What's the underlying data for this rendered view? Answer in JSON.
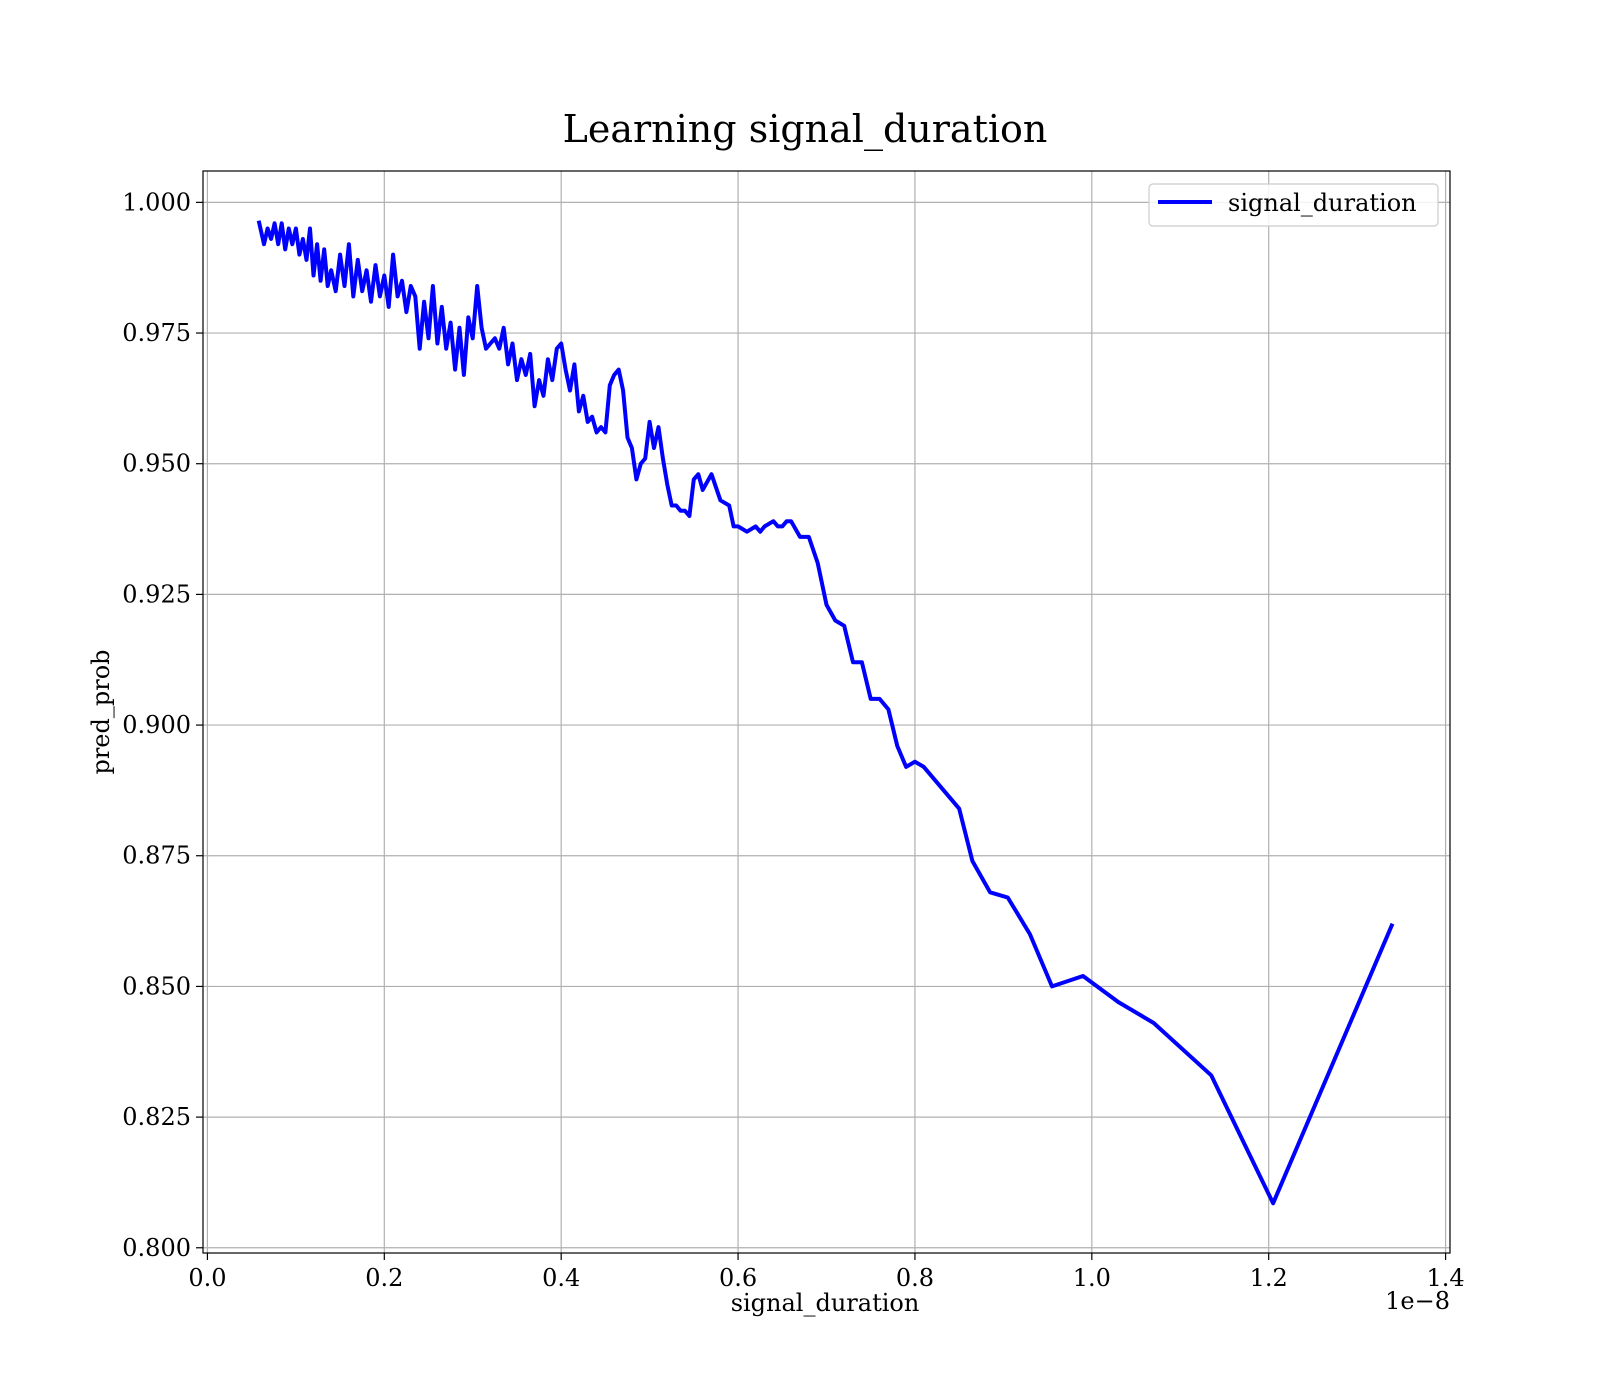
{
  "chart_data": {
    "type": "line",
    "title": "Learning signal_duration",
    "xlabel": "signal_duration",
    "ylabel": "pred_prob",
    "x_offset_label": "1e−8",
    "xlim": [
      -5e-11,
      1.405e-08
    ],
    "ylim": [
      0.799,
      1.006
    ],
    "x_ticks": [
      0.0,
      2e-09,
      4e-09,
      6e-09,
      8e-09,
      1e-08,
      1.2e-08,
      1.4e-08
    ],
    "x_tick_labels": [
      "0.0",
      "0.2",
      "0.4",
      "0.6",
      "0.8",
      "1.0",
      "1.2",
      "1.4"
    ],
    "y_ticks": [
      0.8,
      0.825,
      0.85,
      0.875,
      0.9,
      0.925,
      0.95,
      0.975,
      1.0
    ],
    "y_tick_labels": [
      "0.800",
      "0.825",
      "0.850",
      "0.875",
      "0.900",
      "0.925",
      "0.950",
      "0.975",
      "1.000"
    ],
    "grid": true,
    "legend_position": "top-right",
    "colors": {
      "series": "#0000ff"
    },
    "series": [
      {
        "name": "signal_duration",
        "x": [
          5.8e-10,
          6.4e-10,
          6.8e-10,
          7.2e-10,
          7.6e-10,
          8e-10,
          8.4e-10,
          8.8e-10,
          9.2e-10,
          9.6e-10,
          1e-09,
          1.04e-09,
          1.08e-09,
          1.12e-09,
          1.16e-09,
          1.2e-09,
          1.24e-09,
          1.28e-09,
          1.32e-09,
          1.36e-09,
          1.4e-09,
          1.45e-09,
          1.5e-09,
          1.55e-09,
          1.6e-09,
          1.65e-09,
          1.7e-09,
          1.75e-09,
          1.8e-09,
          1.85e-09,
          1.9e-09,
          1.95e-09,
          2e-09,
          2.05e-09,
          2.1e-09,
          2.15e-09,
          2.2e-09,
          2.25e-09,
          2.3e-09,
          2.35e-09,
          2.4e-09,
          2.45e-09,
          2.5e-09,
          2.55e-09,
          2.6e-09,
          2.65e-09,
          2.7e-09,
          2.75e-09,
          2.8e-09,
          2.85e-09,
          2.9e-09,
          2.95e-09,
          3e-09,
          3.05e-09,
          3.1e-09,
          3.15e-09,
          3.2e-09,
          3.25e-09,
          3.3e-09,
          3.35e-09,
          3.4e-09,
          3.45e-09,
          3.5e-09,
          3.55e-09,
          3.6e-09,
          3.65e-09,
          3.7e-09,
          3.75e-09,
          3.8e-09,
          3.85e-09,
          3.9e-09,
          3.95e-09,
          4e-09,
          4.05e-09,
          4.1e-09,
          4.15e-09,
          4.2e-09,
          4.25e-09,
          4.3e-09,
          4.35e-09,
          4.4e-09,
          4.45e-09,
          4.5e-09,
          4.55e-09,
          4.6e-09,
          4.65e-09,
          4.7e-09,
          4.75e-09,
          4.8e-09,
          4.85e-09,
          4.9e-09,
          4.95e-09,
          5e-09,
          5.05e-09,
          5.1e-09,
          5.15e-09,
          5.2e-09,
          5.25e-09,
          5.3e-09,
          5.35e-09,
          5.4e-09,
          5.45e-09,
          5.5e-09,
          5.55e-09,
          5.6e-09,
          5.7e-09,
          5.8e-09,
          5.9e-09,
          5.95e-09,
          6e-09,
          6.1e-09,
          6.2e-09,
          6.25e-09,
          6.3e-09,
          6.4e-09,
          6.45e-09,
          6.5e-09,
          6.55e-09,
          6.6e-09,
          6.7e-09,
          6.8e-09,
          6.9e-09,
          7e-09,
          7.1e-09,
          7.2e-09,
          7.3e-09,
          7.4e-09,
          7.5e-09,
          7.6e-09,
          7.7e-09,
          7.8e-09,
          7.9e-09,
          8e-09,
          8.1e-09,
          8.3e-09,
          8.5e-09,
          8.65e-09,
          8.85e-09,
          9.05e-09,
          9.3e-09,
          9.55e-09,
          9.9e-09,
          1.03e-08,
          1.07e-08,
          1.135e-08,
          1.205e-08,
          1.34e-08
        ],
        "y": [
          0.9965,
          0.992,
          0.995,
          0.993,
          0.996,
          0.992,
          0.996,
          0.991,
          0.995,
          0.992,
          0.995,
          0.99,
          0.993,
          0.989,
          0.995,
          0.986,
          0.992,
          0.985,
          0.991,
          0.984,
          0.987,
          0.983,
          0.99,
          0.984,
          0.992,
          0.982,
          0.989,
          0.983,
          0.987,
          0.981,
          0.988,
          0.982,
          0.986,
          0.98,
          0.99,
          0.982,
          0.985,
          0.979,
          0.984,
          0.982,
          0.972,
          0.981,
          0.974,
          0.984,
          0.973,
          0.98,
          0.972,
          0.977,
          0.968,
          0.976,
          0.967,
          0.978,
          0.974,
          0.984,
          0.976,
          0.972,
          0.973,
          0.974,
          0.972,
          0.976,
          0.969,
          0.973,
          0.966,
          0.97,
          0.967,
          0.971,
          0.961,
          0.966,
          0.963,
          0.97,
          0.966,
          0.972,
          0.973,
          0.968,
          0.964,
          0.969,
          0.96,
          0.963,
          0.958,
          0.959,
          0.956,
          0.957,
          0.956,
          0.965,
          0.967,
          0.968,
          0.964,
          0.955,
          0.953,
          0.947,
          0.95,
          0.951,
          0.958,
          0.953,
          0.957,
          0.951,
          0.946,
          0.942,
          0.942,
          0.941,
          0.941,
          0.94,
          0.947,
          0.948,
          0.945,
          0.948,
          0.943,
          0.942,
          0.938,
          0.938,
          0.937,
          0.938,
          0.937,
          0.938,
          0.939,
          0.938,
          0.938,
          0.939,
          0.939,
          0.936,
          0.936,
          0.931,
          0.923,
          0.92,
          0.919,
          0.912,
          0.912,
          0.905,
          0.905,
          0.903,
          0.896,
          0.892,
          0.893,
          0.892,
          0.888,
          0.884,
          0.874,
          0.868,
          0.867,
          0.86,
          0.85,
          0.852,
          0.847,
          0.843,
          0.833,
          0.8085,
          0.862
        ]
      }
    ]
  }
}
